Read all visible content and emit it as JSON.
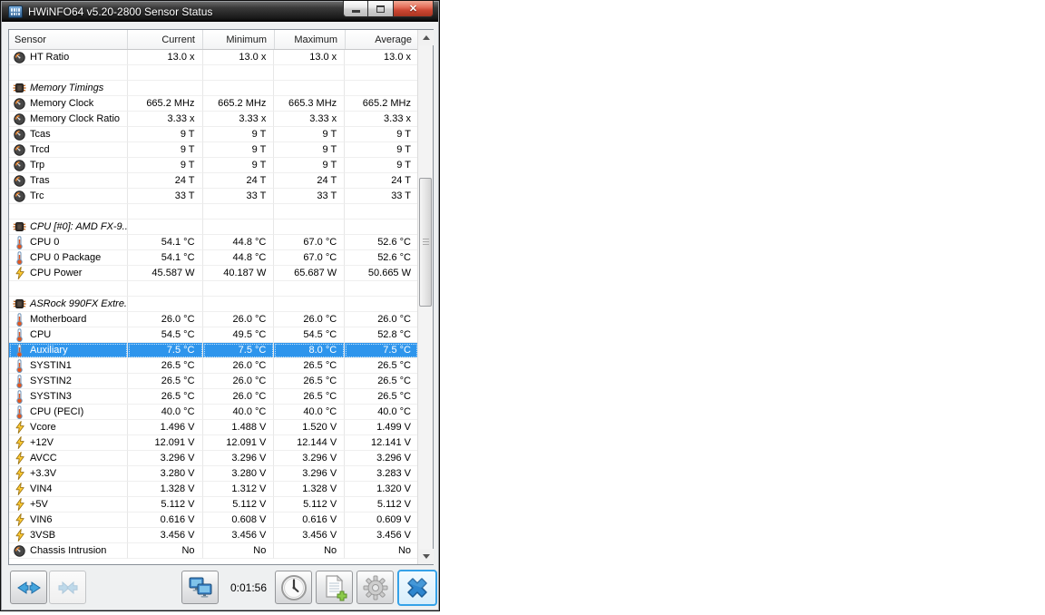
{
  "window": {
    "title": "HWiNFO64 v5.20-2800 Sensor Status",
    "controls": [
      {
        "name": "minimize",
        "icon": "minimize-icon"
      },
      {
        "name": "maximize",
        "icon": "maximize-icon"
      },
      {
        "name": "close",
        "icon": "close-icon",
        "color": "#cc4834"
      }
    ]
  },
  "table": {
    "columns": [
      "Sensor",
      "Current",
      "Minimum",
      "Maximum",
      "Average"
    ],
    "rows": [
      {
        "type": "reading",
        "icon": "gauge",
        "label": "HT Ratio",
        "values": [
          "13.0 x",
          "13.0 x",
          "13.0 x",
          "13.0 x"
        ]
      },
      {
        "type": "blank"
      },
      {
        "type": "section",
        "icon": "chip",
        "label": "Memory Timings"
      },
      {
        "type": "reading",
        "icon": "gauge",
        "label": "Memory Clock",
        "values": [
          "665.2 MHz",
          "665.2 MHz",
          "665.3 MHz",
          "665.2 MHz"
        ]
      },
      {
        "type": "reading",
        "icon": "gauge",
        "label": "Memory Clock Ratio",
        "values": [
          "3.33 x",
          "3.33 x",
          "3.33 x",
          "3.33 x"
        ]
      },
      {
        "type": "reading",
        "icon": "gauge",
        "label": "Tcas",
        "values": [
          "9 T",
          "9 T",
          "9 T",
          "9 T"
        ]
      },
      {
        "type": "reading",
        "icon": "gauge",
        "label": "Trcd",
        "values": [
          "9 T",
          "9 T",
          "9 T",
          "9 T"
        ]
      },
      {
        "type": "reading",
        "icon": "gauge",
        "label": "Trp",
        "values": [
          "9 T",
          "9 T",
          "9 T",
          "9 T"
        ]
      },
      {
        "type": "reading",
        "icon": "gauge",
        "label": "Tras",
        "values": [
          "24 T",
          "24 T",
          "24 T",
          "24 T"
        ]
      },
      {
        "type": "reading",
        "icon": "gauge",
        "label": "Trc",
        "values": [
          "33 T",
          "33 T",
          "33 T",
          "33 T"
        ]
      },
      {
        "type": "blank"
      },
      {
        "type": "section",
        "icon": "chip",
        "label": "CPU [#0]: AMD FX-9..."
      },
      {
        "type": "reading",
        "icon": "thermo",
        "label": "CPU 0",
        "values": [
          "54.1 °C",
          "44.8 °C",
          "67.0 °C",
          "52.6 °C"
        ]
      },
      {
        "type": "reading",
        "icon": "thermo",
        "label": "CPU 0 Package",
        "values": [
          "54.1 °C",
          "44.8 °C",
          "67.0 °C",
          "52.6 °C"
        ]
      },
      {
        "type": "reading",
        "icon": "bolt",
        "label": "CPU Power",
        "values": [
          "45.587 W",
          "40.187 W",
          "65.687 W",
          "50.665 W"
        ]
      },
      {
        "type": "blank"
      },
      {
        "type": "section",
        "icon": "chip",
        "label": "ASRock 990FX Extre..."
      },
      {
        "type": "reading",
        "icon": "thermo",
        "label": "Motherboard",
        "values": [
          "26.0 °C",
          "26.0 °C",
          "26.0 °C",
          "26.0 °C"
        ]
      },
      {
        "type": "reading",
        "icon": "thermo",
        "label": "CPU",
        "values": [
          "54.5 °C",
          "49.5 °C",
          "54.5 °C",
          "52.8 °C"
        ]
      },
      {
        "type": "reading",
        "icon": "thermo",
        "label": "Auxiliary",
        "selected": true,
        "values": [
          "7.5 °C",
          "7.5 °C",
          "8.0 °C",
          "7.5 °C"
        ]
      },
      {
        "type": "reading",
        "icon": "thermo",
        "label": "SYSTIN1",
        "values": [
          "26.5 °C",
          "26.0 °C",
          "26.5 °C",
          "26.5 °C"
        ]
      },
      {
        "type": "reading",
        "icon": "thermo",
        "label": "SYSTIN2",
        "values": [
          "26.5 °C",
          "26.0 °C",
          "26.5 °C",
          "26.5 °C"
        ]
      },
      {
        "type": "reading",
        "icon": "thermo",
        "label": "SYSTIN3",
        "values": [
          "26.5 °C",
          "26.0 °C",
          "26.5 °C",
          "26.5 °C"
        ]
      },
      {
        "type": "reading",
        "icon": "thermo",
        "label": "CPU (PECI)",
        "values": [
          "40.0 °C",
          "40.0 °C",
          "40.0 °C",
          "40.0 °C"
        ]
      },
      {
        "type": "reading",
        "icon": "bolt",
        "label": "Vcore",
        "values": [
          "1.496 V",
          "1.488 V",
          "1.520 V",
          "1.499 V"
        ]
      },
      {
        "type": "reading",
        "icon": "bolt",
        "label": "+12V",
        "values": [
          "12.091 V",
          "12.091 V",
          "12.144 V",
          "12.141 V"
        ]
      },
      {
        "type": "reading",
        "icon": "bolt",
        "label": "AVCC",
        "values": [
          "3.296 V",
          "3.296 V",
          "3.296 V",
          "3.296 V"
        ]
      },
      {
        "type": "reading",
        "icon": "bolt",
        "label": "+3.3V",
        "values": [
          "3.280 V",
          "3.280 V",
          "3.296 V",
          "3.283 V"
        ]
      },
      {
        "type": "reading",
        "icon": "bolt",
        "label": "VIN4",
        "values": [
          "1.328 V",
          "1.312 V",
          "1.328 V",
          "1.320 V"
        ]
      },
      {
        "type": "reading",
        "icon": "bolt",
        "label": "+5V",
        "values": [
          "5.112 V",
          "5.112 V",
          "5.112 V",
          "5.112 V"
        ]
      },
      {
        "type": "reading",
        "icon": "bolt",
        "label": "VIN6",
        "values": [
          "0.616 V",
          "0.608 V",
          "0.616 V",
          "0.609 V"
        ]
      },
      {
        "type": "reading",
        "icon": "bolt",
        "label": "3VSB",
        "values": [
          "3.456 V",
          "3.456 V",
          "3.456 V",
          "3.456 V"
        ]
      },
      {
        "type": "reading",
        "icon": "gauge",
        "label": "Chassis Intrusion",
        "values": [
          "No",
          "No",
          "No",
          "No"
        ]
      }
    ],
    "selection_color": "#2e95ec"
  },
  "toolbar": {
    "timer": "0:01:56",
    "buttons": [
      {
        "name": "expand-columns",
        "icon": "arrows-apart-icon",
        "enabled": true
      },
      {
        "name": "collapse-columns",
        "icon": "arrows-together-icon",
        "enabled": false
      },
      {
        "name": "remote-monitoring",
        "icon": "monitors-icon",
        "enabled": true
      },
      {
        "name": "logging",
        "icon": "clock-icon",
        "enabled": true
      },
      {
        "name": "report",
        "icon": "report-add-icon",
        "enabled": true
      },
      {
        "name": "settings",
        "icon": "gear-icon",
        "enabled": true
      },
      {
        "name": "close-sensors",
        "icon": "blue-cross-icon",
        "enabled": true,
        "focused": true
      }
    ]
  }
}
